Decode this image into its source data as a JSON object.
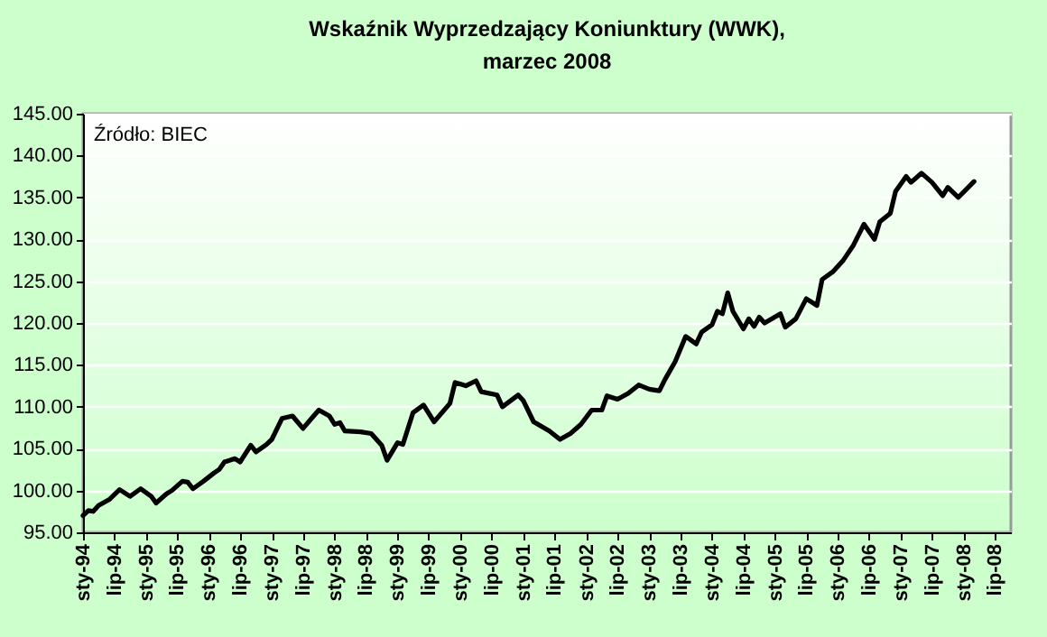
{
  "chart_data": {
    "type": "line",
    "title": "Wskaźnik Wyprzedzający Koniunktury (WWK),",
    "subtitle": "marzec 2008",
    "annotations": [
      "Źródło: BIEC"
    ],
    "x": [
      "1994-01",
      "1994-02",
      "1994-03",
      "1994-04",
      "1994-06",
      "1994-08",
      "1994-10",
      "1994-12",
      "1995-02",
      "1995-03",
      "1995-05",
      "1995-06",
      "1995-08",
      "1995-09",
      "1995-10",
      "1995-12",
      "1996-02",
      "1996-03",
      "1996-04",
      "1996-06",
      "1996-07",
      "1996-09",
      "1996-10",
      "1996-12",
      "1997-01",
      "1997-03",
      "1997-05",
      "1997-07",
      "1997-09",
      "1997-10",
      "1997-12",
      "1998-01",
      "1998-02",
      "1998-03",
      "1998-06",
      "1998-08",
      "1998-10",
      "1998-11",
      "1999-01",
      "1999-02",
      "1999-04",
      "1999-06",
      "1999-08",
      "1999-11",
      "1999-12",
      "2000-02",
      "2000-04",
      "2000-05",
      "2000-08",
      "2000-09",
      "2000-12",
      "2001-01",
      "2001-03",
      "2001-06",
      "2001-08",
      "2001-10",
      "2001-12",
      "2002-02",
      "2002-04",
      "2002-05",
      "2002-07",
      "2002-09",
      "2002-11",
      "2003-01",
      "2003-03",
      "2003-04",
      "2003-06",
      "2003-08",
      "2003-10",
      "2003-11",
      "2004-01",
      "2004-02",
      "2004-03",
      "2004-04",
      "2004-05",
      "2004-07",
      "2004-08",
      "2004-09",
      "2004-10",
      "2004-11",
      "2005-02",
      "2005-03",
      "2005-05",
      "2005-07",
      "2005-09",
      "2005-10",
      "2005-12",
      "2006-02",
      "2006-04",
      "2006-06",
      "2006-08",
      "2006-09",
      "2006-11",
      "2006-12",
      "2007-02",
      "2007-03",
      "2007-05",
      "2007-07",
      "2007-09",
      "2007-10",
      "2007-12",
      "2008-03"
    ],
    "series": [
      {
        "color": "#000000",
        "values": [
          97.0,
          97.6,
          97.5,
          98.2,
          98.9,
          100.1,
          99.3,
          100.2,
          99.3,
          98.5,
          99.6,
          100.0,
          101.1,
          101.0,
          100.2,
          101.1,
          102.1,
          102.5,
          103.4,
          103.8,
          103.4,
          105.4,
          104.6,
          105.5,
          106.1,
          108.6,
          108.9,
          107.4,
          108.9,
          109.6,
          108.9,
          107.9,
          108.1,
          107.1,
          107.0,
          106.8,
          105.4,
          103.6,
          105.7,
          105.5,
          109.3,
          110.2,
          108.2,
          110.4,
          112.9,
          112.5,
          113.1,
          111.8,
          111.4,
          110.0,
          111.4,
          110.7,
          108.2,
          107.1,
          106.1,
          106.8,
          107.9,
          109.6,
          109.6,
          111.3,
          110.9,
          111.6,
          112.6,
          112.1,
          111.9,
          113.2,
          115.4,
          118.4,
          117.5,
          118.9,
          119.8,
          121.4,
          121.1,
          123.6,
          121.4,
          119.3,
          120.5,
          119.6,
          120.7,
          120.0,
          121.1,
          119.5,
          120.5,
          122.9,
          122.1,
          125.2,
          126.1,
          127.5,
          129.3,
          131.8,
          130.0,
          132.1,
          133.1,
          135.7,
          137.5,
          136.8,
          137.9,
          136.8,
          135.2,
          136.2,
          135.0,
          136.9
        ]
      }
    ],
    "xlim": [
      "1994-01",
      "2008-10"
    ],
    "xticks": [
      {
        "value": "1994-01",
        "label": "sty-94"
      },
      {
        "value": "1994-07",
        "label": "lip-94"
      },
      {
        "value": "1995-01",
        "label": "sty-95"
      },
      {
        "value": "1995-07",
        "label": "lip-95"
      },
      {
        "value": "1996-01",
        "label": "sty-96"
      },
      {
        "value": "1996-07",
        "label": "lip-96"
      },
      {
        "value": "1997-01",
        "label": "sty-97"
      },
      {
        "value": "1997-07",
        "label": "lip-97"
      },
      {
        "value": "1998-01",
        "label": "sty-98"
      },
      {
        "value": "1998-07",
        "label": "lip-98"
      },
      {
        "value": "1999-01",
        "label": "sty-99"
      },
      {
        "value": "1999-07",
        "label": "lip-99"
      },
      {
        "value": "2000-01",
        "label": "sty-00"
      },
      {
        "value": "2000-07",
        "label": "lip-00"
      },
      {
        "value": "2001-01",
        "label": "sty-01"
      },
      {
        "value": "2001-07",
        "label": "lip-01"
      },
      {
        "value": "2002-01",
        "label": "sty-02"
      },
      {
        "value": "2002-07",
        "label": "lip-02"
      },
      {
        "value": "2003-01",
        "label": "sty-03"
      },
      {
        "value": "2003-07",
        "label": "lip-03"
      },
      {
        "value": "2004-01",
        "label": "sty-04"
      },
      {
        "value": "2004-07",
        "label": "lip-04"
      },
      {
        "value": "2005-01",
        "label": "sty-05"
      },
      {
        "value": "2005-07",
        "label": "lip-05"
      },
      {
        "value": "2006-01",
        "label": "sty-06"
      },
      {
        "value": "2006-07",
        "label": "lip-06"
      },
      {
        "value": "2007-01",
        "label": "sty-07"
      },
      {
        "value": "2007-07",
        "label": "lip-07"
      },
      {
        "value": "2008-01",
        "label": "sty-08"
      },
      {
        "value": "2008-07",
        "label": "lip-08"
      }
    ],
    "ylim": [
      95,
      145
    ],
    "yticks": [
      {
        "value": 95,
        "label": "95.00"
      },
      {
        "value": 100,
        "label": "100.00"
      },
      {
        "value": 105,
        "label": "105.00"
      },
      {
        "value": 110,
        "label": "110.00"
      },
      {
        "value": 115,
        "label": "115.00"
      },
      {
        "value": 120,
        "label": "120.00"
      },
      {
        "value": 125,
        "label": "125.00"
      },
      {
        "value": 130,
        "label": "130.00"
      },
      {
        "value": 135,
        "label": "135.00"
      },
      {
        "value": 140,
        "label": "140.00"
      },
      {
        "value": 145,
        "label": "145.00"
      }
    ],
    "grid": "y",
    "marker": "none",
    "line_style": "solid"
  }
}
